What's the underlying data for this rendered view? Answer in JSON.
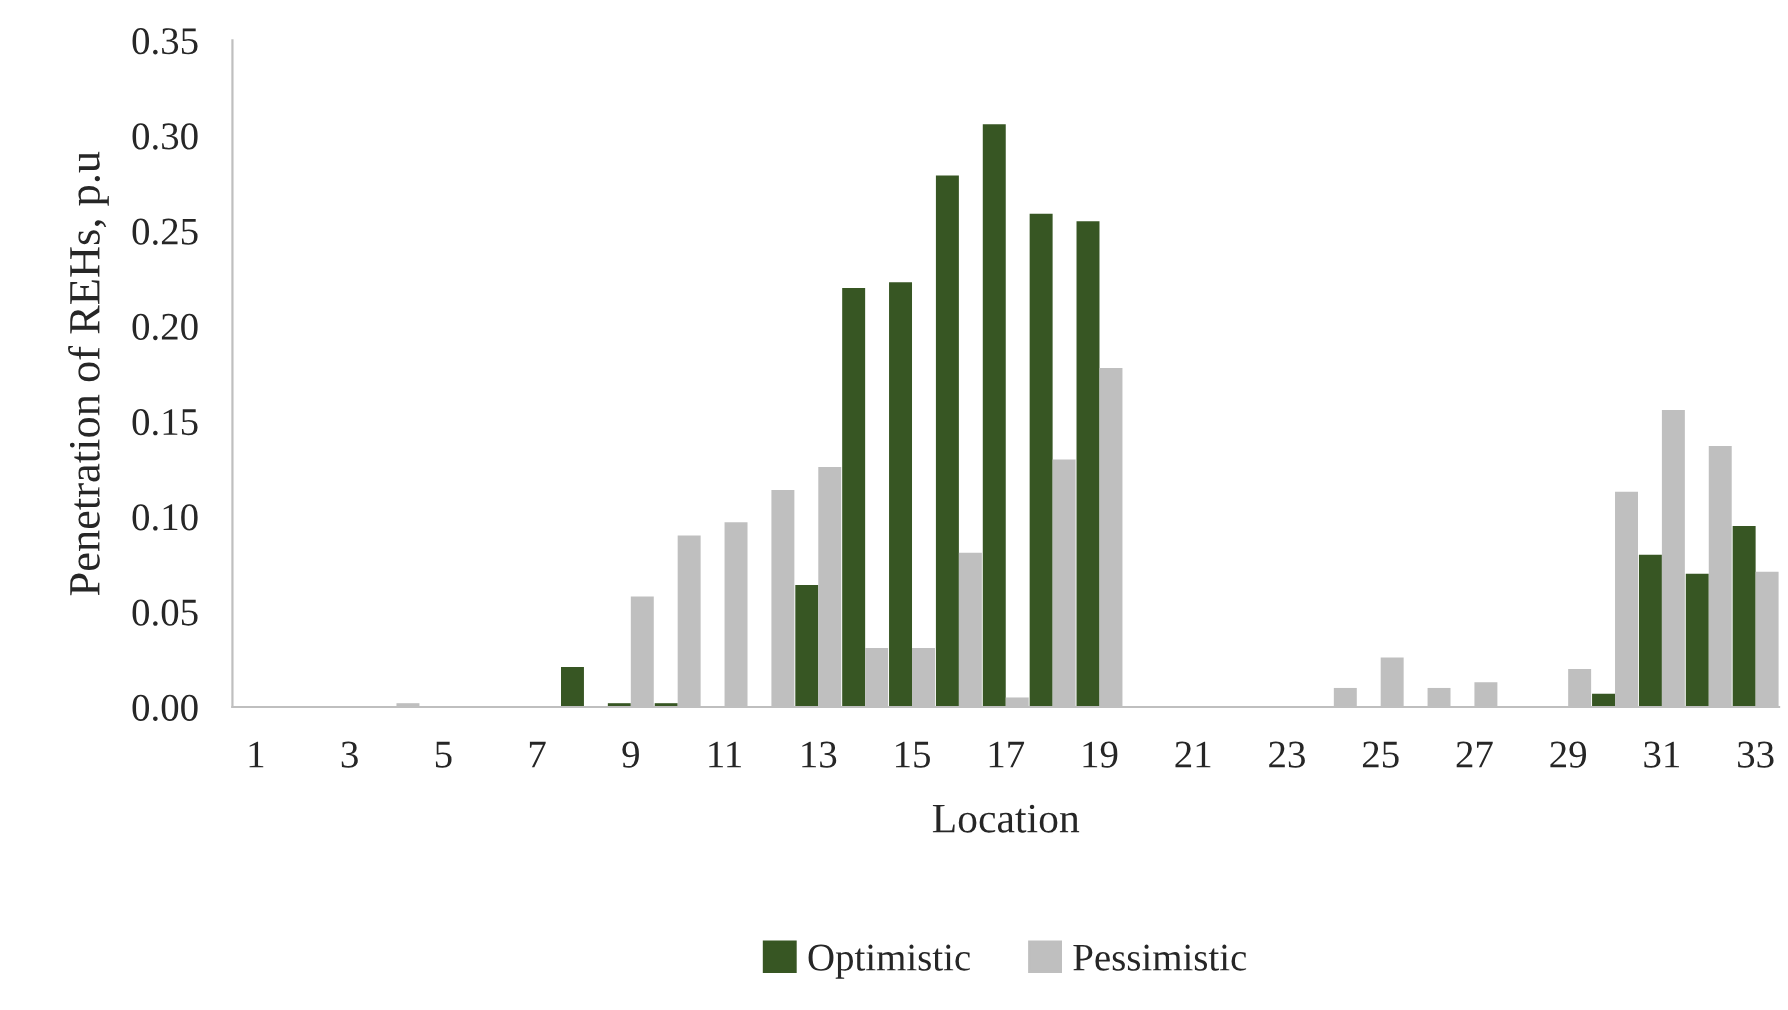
{
  "chart_data": {
    "type": "bar",
    "xlabel": "Location",
    "ylabel": "Penetration of REHs, p.u",
    "categories": [
      "1",
      null,
      "3",
      null,
      "5",
      null,
      "7",
      null,
      "9",
      null,
      "11",
      null,
      "13",
      null,
      "15",
      null,
      "17",
      null,
      "19",
      null,
      "21",
      null,
      "23",
      null,
      "25",
      null,
      "27",
      null,
      "29",
      null,
      "31",
      null,
      "33"
    ],
    "series": [
      {
        "name": "Optimistic",
        "color": "#375623",
        "values": [
          0,
          0,
          0,
          0,
          0,
          0,
          0,
          0.021,
          0.002,
          0.002,
          0,
          0,
          0.064,
          0.22,
          0.223,
          0.279,
          0.306,
          0.259,
          0.255,
          0,
          0,
          0,
          0,
          0,
          0,
          0,
          0,
          0,
          0,
          0.007,
          0.08,
          0.07,
          0.095
        ]
      },
      {
        "name": "Pessimistic",
        "color": "#bfbfbf",
        "values": [
          0,
          0,
          0,
          0.002,
          0,
          0,
          0,
          0,
          0.058,
          0.09,
          0.097,
          0.114,
          0.126,
          0.031,
          0.031,
          0.081,
          0.005,
          0.13,
          0.178,
          0,
          0,
          0,
          0,
          0.01,
          0.026,
          0.01,
          0.013,
          0,
          0.02,
          0.113,
          0.156,
          0.137,
          0.071
        ]
      }
    ],
    "ylim": [
      0,
      0.35
    ],
    "yticks": [
      {
        "value": 0,
        "label": "0.00"
      },
      {
        "value": 0.05,
        "label": "0.05"
      },
      {
        "value": 0.1,
        "label": "0.10"
      },
      {
        "value": 0.15,
        "label": "0.15"
      },
      {
        "value": 0.2,
        "label": "0.20"
      },
      {
        "value": 0.25,
        "label": "0.25"
      },
      {
        "value": 0.3,
        "label": "0.30"
      },
      {
        "value": 0.35,
        "label": "0.35"
      }
    ],
    "grid": false,
    "legend": "bottom"
  }
}
